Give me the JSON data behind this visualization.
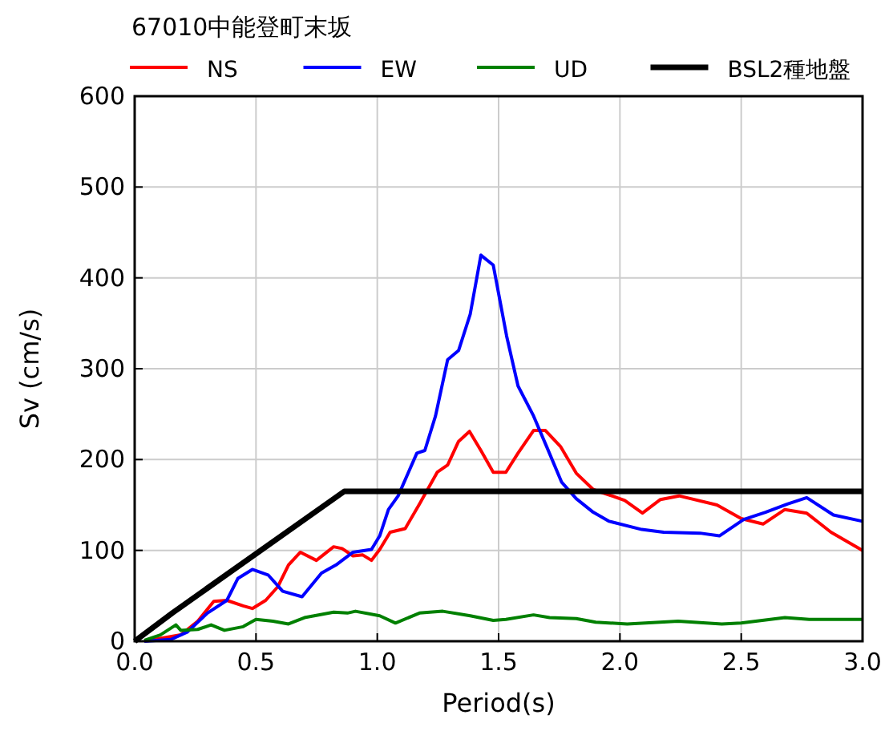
{
  "chart_data": {
    "type": "line",
    "title": "67010中能登町末坂",
    "xlabel": "Period(s)",
    "ylabel": "Sv (cm/s)",
    "xlim": [
      0,
      3
    ],
    "xticks": [
      {
        "value": 0,
        "label": "0.0"
      },
      {
        "value": 0.5,
        "label": "0.5"
      },
      {
        "value": 1,
        "label": "1.0"
      },
      {
        "value": 1.5,
        "label": "1.5"
      },
      {
        "value": 2,
        "label": "2.0"
      },
      {
        "value": 2.5,
        "label": "2.5"
      },
      {
        "value": 3,
        "label": "3.0"
      }
    ],
    "ylim": [
      0,
      600
    ],
    "yticks": [
      0,
      100,
      200,
      300,
      400,
      500,
      600
    ],
    "grid": true,
    "legend": "top",
    "marker": "none",
    "line_style": "solid",
    "series": [
      {
        "name": "NS",
        "color": "#ff0000",
        "x": [
          0.04,
          0.19,
          0.26,
          0.326,
          0.38,
          0.447,
          0.485,
          0.54,
          0.59,
          0.634,
          0.683,
          0.749,
          0.82,
          0.855,
          0.9,
          0.94,
          0.976,
          1.01,
          1.053,
          1.115,
          1.174,
          1.247,
          1.29,
          1.335,
          1.38,
          1.427,
          1.478,
          1.53,
          1.58,
          1.644,
          1.693,
          1.756,
          1.82,
          1.89,
          1.956,
          2.02,
          2.093,
          2.167,
          2.244,
          2.4,
          2.5,
          2.59,
          2.68,
          2.77,
          2.87,
          3.0
        ],
        "values": [
          0,
          7,
          22,
          44,
          45,
          39,
          36,
          45,
          60,
          84,
          98,
          89,
          104,
          102,
          94,
          95,
          89,
          101,
          120,
          124,
          151,
          186,
          194,
          220,
          231,
          210,
          186,
          186,
          207,
          232,
          232,
          214,
          185,
          167,
          161,
          155,
          141,
          156,
          160,
          150,
          135,
          129,
          145,
          141,
          120,
          100
        ]
      },
      {
        "name": "EW",
        "color": "#0000ff",
        "x": [
          0.04,
          0.15,
          0.216,
          0.3,
          0.38,
          0.425,
          0.485,
          0.55,
          0.61,
          0.69,
          0.77,
          0.83,
          0.9,
          0.976,
          1.01,
          1.046,
          1.086,
          1.163,
          1.196,
          1.24,
          1.29,
          1.335,
          1.383,
          1.427,
          1.478,
          1.533,
          1.58,
          1.644,
          1.7,
          1.76,
          1.82,
          1.89,
          1.956,
          2.09,
          2.18,
          2.33,
          2.41,
          2.51,
          2.6,
          2.69,
          2.77,
          2.88,
          3.0
        ],
        "values": [
          0,
          2,
          10,
          31,
          45,
          69,
          79,
          73,
          55,
          49,
          75,
          84,
          98,
          101,
          116,
          145,
          160,
          207,
          210,
          248,
          310,
          320,
          360,
          425,
          414,
          336,
          281,
          248,
          213,
          175,
          157,
          142,
          132,
          123,
          120,
          119,
          116,
          134,
          142,
          151,
          158,
          139,
          132
        ]
      },
      {
        "name": "UD",
        "color": "#008000",
        "x": [
          0.04,
          0.106,
          0.17,
          0.19,
          0.26,
          0.315,
          0.37,
          0.447,
          0.5,
          0.57,
          0.634,
          0.7,
          0.82,
          0.877,
          0.91,
          1.01,
          1.075,
          1.174,
          1.27,
          1.383,
          1.478,
          1.53,
          1.644,
          1.71,
          1.82,
          1.9,
          2.03,
          2.24,
          2.42,
          2.5,
          2.68,
          2.78,
          3.0
        ],
        "values": [
          1,
          7,
          18,
          12,
          13,
          18,
          12,
          16,
          24,
          22,
          19,
          26,
          32,
          31,
          33,
          28,
          20,
          31,
          33,
          28,
          23,
          24,
          29,
          26,
          25,
          21,
          19,
          22,
          19,
          20,
          26,
          24,
          24
        ]
      },
      {
        "name": "BSL2種地盤",
        "color": "#000000",
        "x": [
          0,
          0.16,
          0.864,
          3.0
        ],
        "values": [
          0,
          32,
          165,
          165
        ]
      }
    ]
  }
}
